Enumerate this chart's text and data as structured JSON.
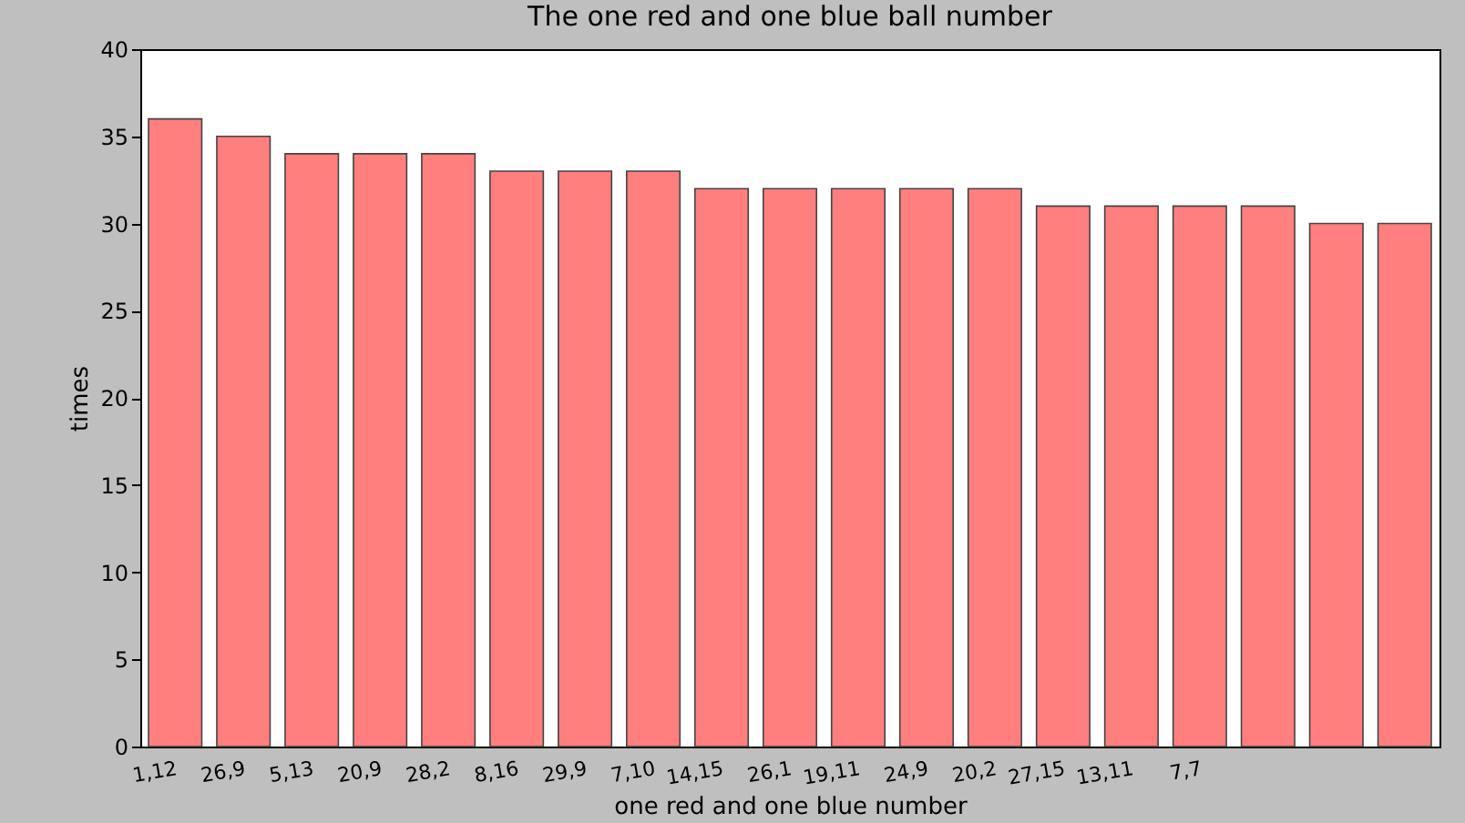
{
  "chart_data": {
    "type": "bar",
    "title": "The one red and one blue ball number",
    "xlabel": "one red and one blue number",
    "ylabel": "times",
    "categories": [
      "1,12",
      "26,9",
      "5,13",
      "20,9",
      "28,2",
      "8,16",
      "29,9",
      "7,10",
      "14,15",
      "26,1",
      "19,11",
      "24,9",
      "20,2",
      "27,15",
      "13,11",
      "7,7",
      null,
      null,
      null
    ],
    "values": [
      36,
      35,
      34,
      34,
      34,
      33,
      33,
      33,
      32,
      32,
      32,
      32,
      32,
      31,
      31,
      31,
      31,
      30,
      30
    ],
    "color": "#ff7f7f",
    "ylim": [
      0,
      40
    ],
    "yticks": [
      0,
      5,
      10,
      15,
      20,
      25,
      30,
      35,
      40
    ],
    "grid": false
  }
}
